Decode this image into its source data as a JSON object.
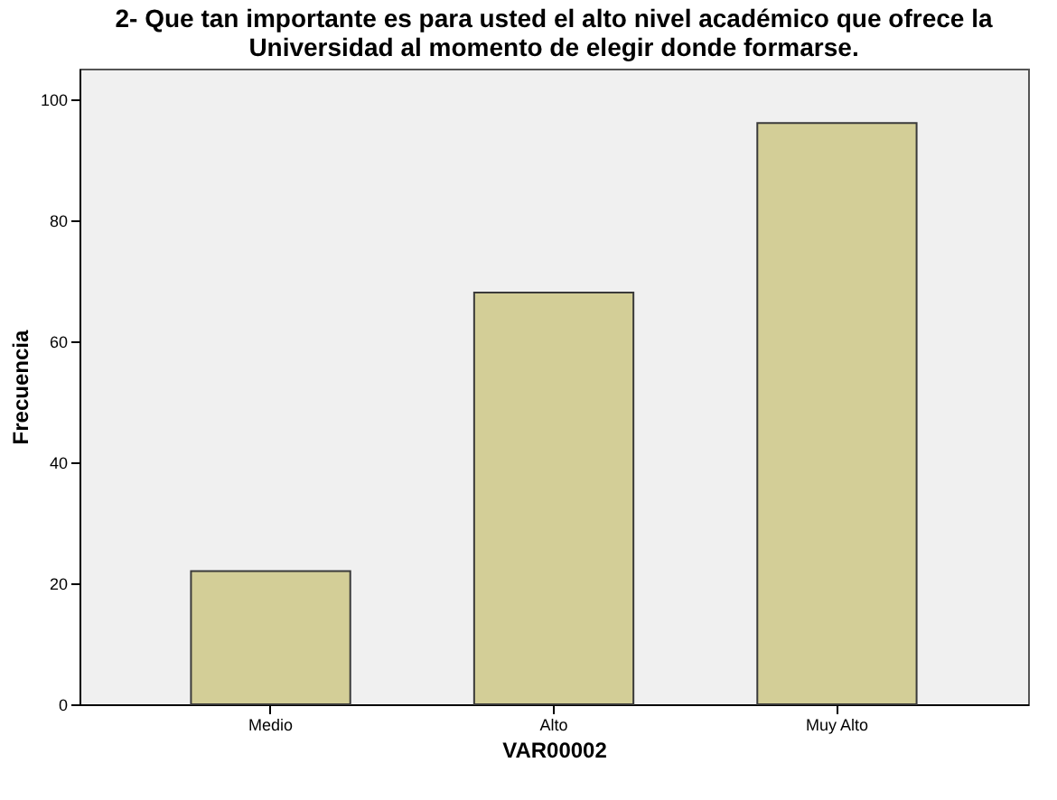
{
  "chart_data": {
    "type": "bar",
    "title": [
      "2- Que tan importante es para usted el alto nivel académico que ofrece la",
      "Universidad al momento de elegir donde formarse."
    ],
    "xlabel": "VAR00002",
    "ylabel": "Frecuencia",
    "categories": [
      "Medio",
      "Alto",
      "Muy Alto"
    ],
    "values": [
      22,
      68,
      96
    ],
    "color": "#d3ce97",
    "ylim": [
      0,
      105
    ],
    "yticks": [
      0,
      20,
      40,
      60,
      80,
      100
    ],
    "grid": false
  }
}
